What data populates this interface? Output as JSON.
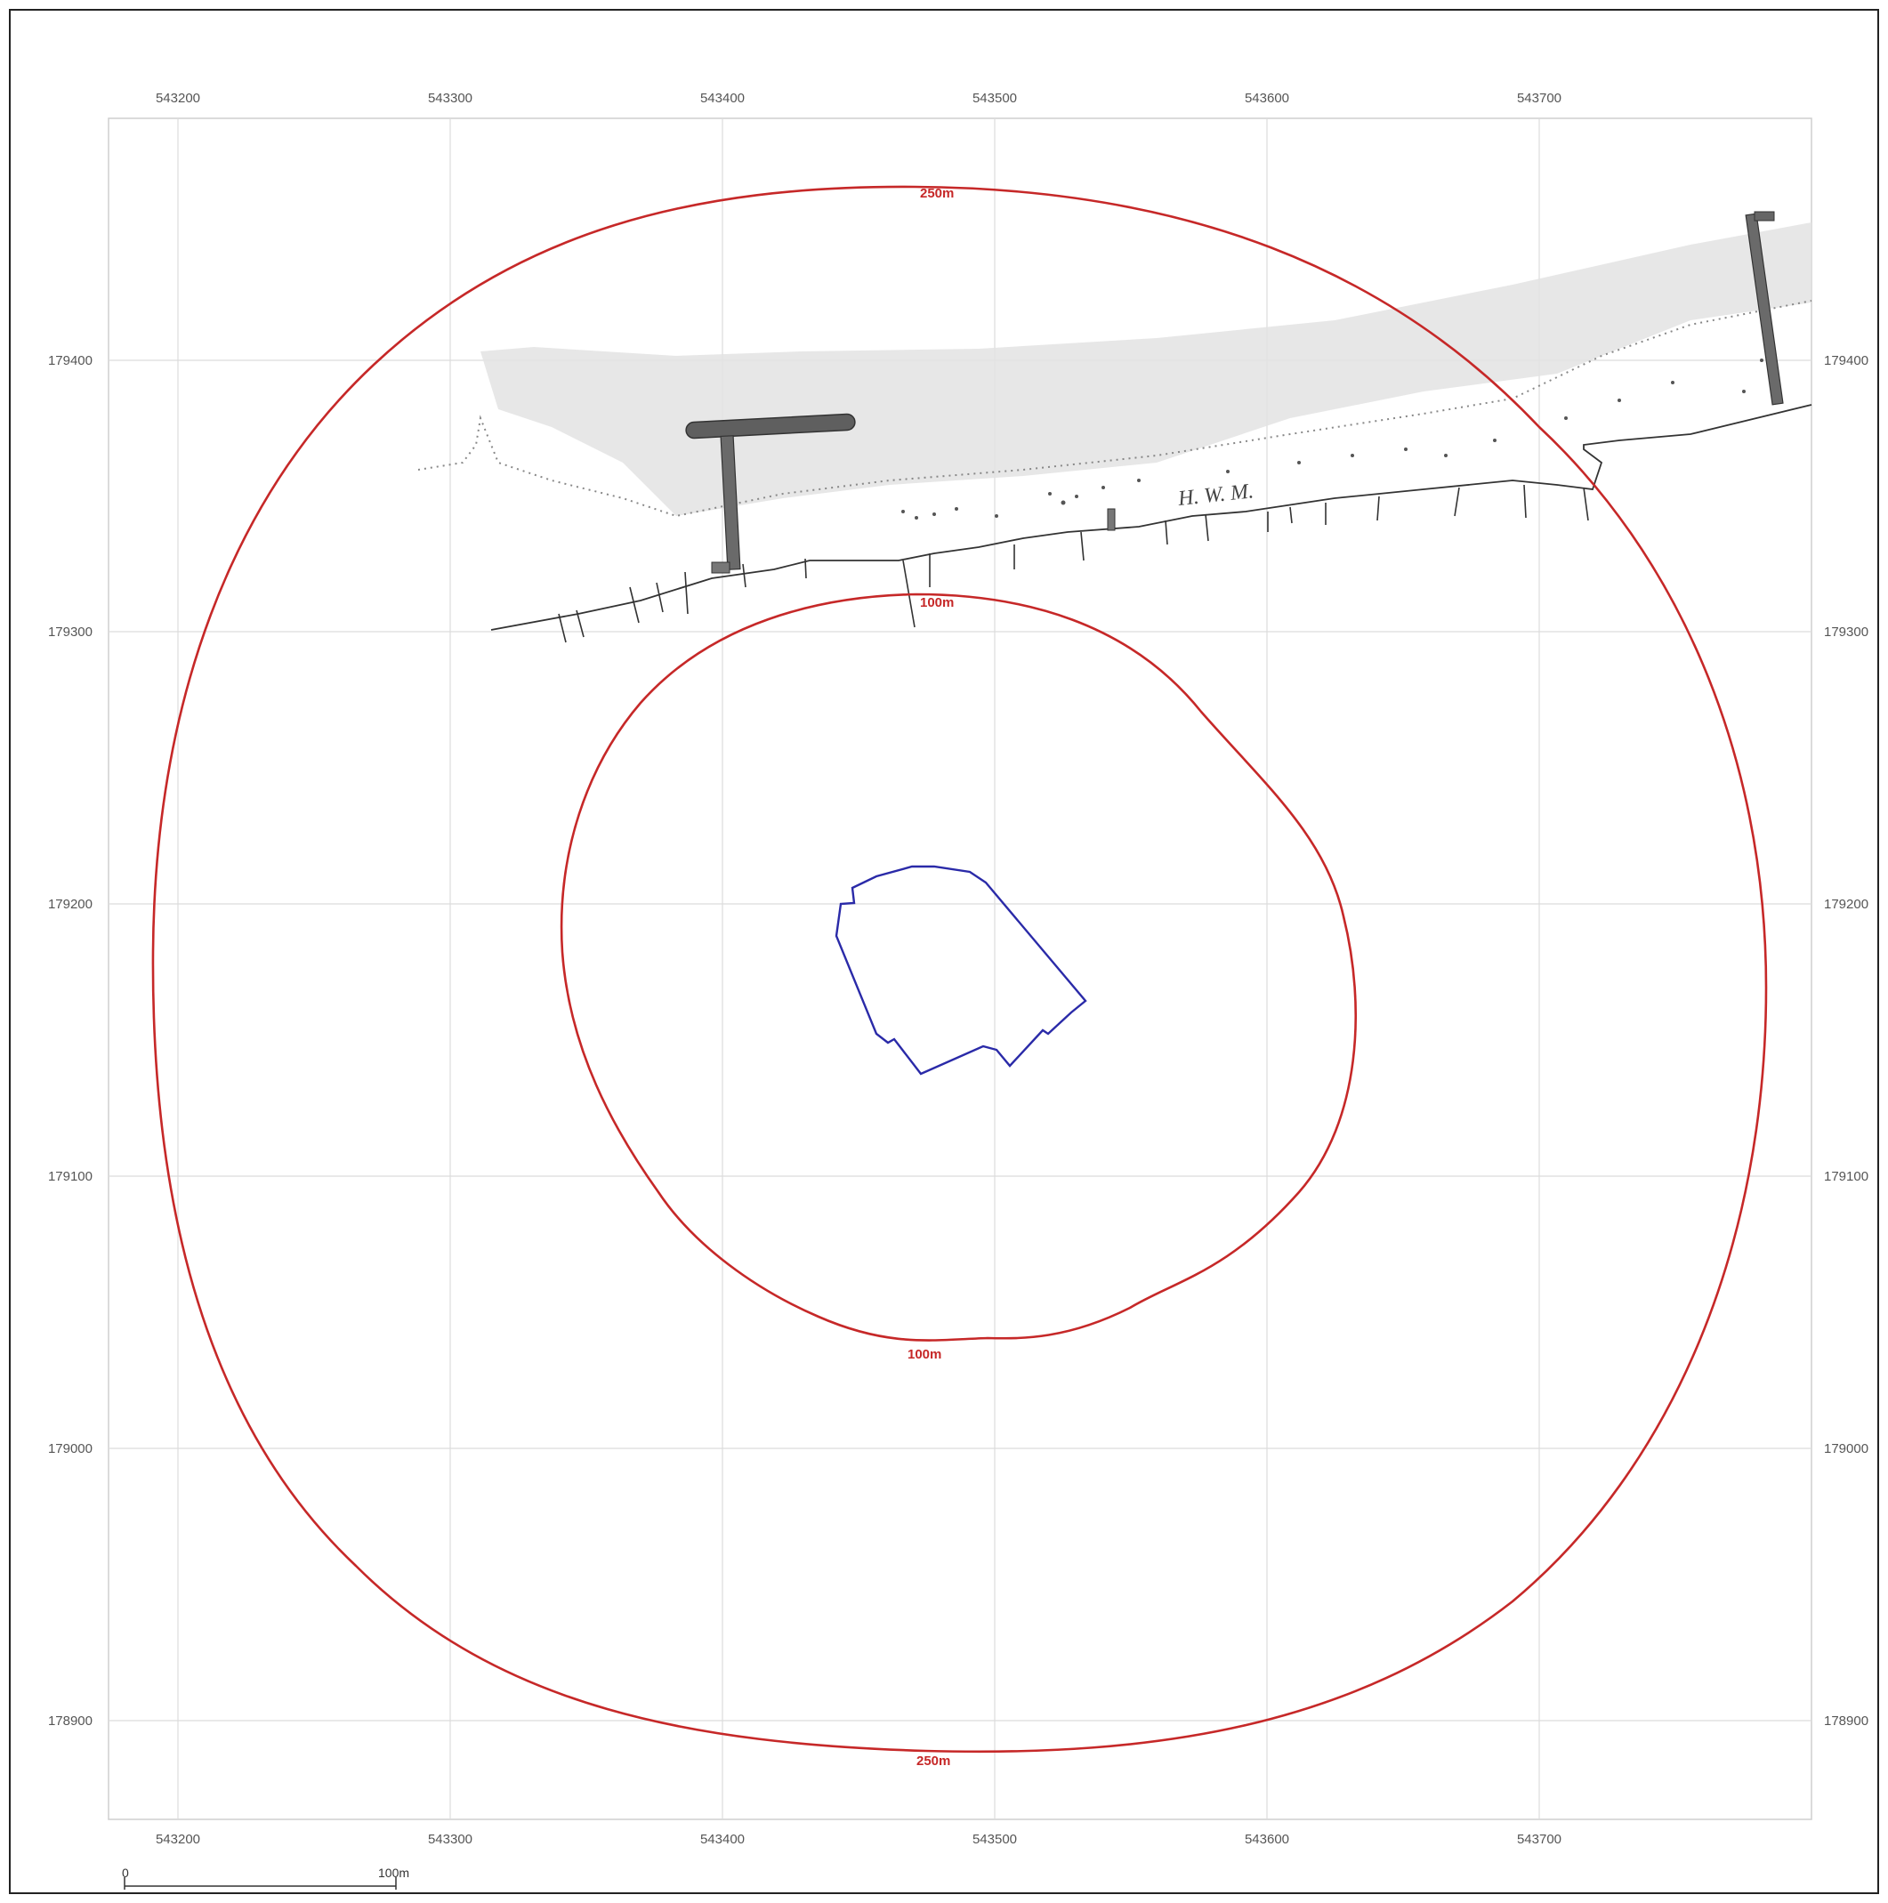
{
  "grid": {
    "eastings": [
      "543200",
      "543300",
      "543400",
      "543500",
      "543600",
      "543700"
    ],
    "northings": [
      "179400",
      "179300",
      "179200",
      "179100",
      "179000",
      "178900"
    ]
  },
  "buffers": {
    "outer_label_top": "250m",
    "outer_label_bottom": "250m",
    "inner_label_top": "100m",
    "inner_label_bottom": "100m",
    "color": "#c62828"
  },
  "site": {
    "outline_color": "#2a2aa8"
  },
  "coast": {
    "label": "H. W. M."
  },
  "scale_bar": {
    "start_label": "0",
    "end_label": "100m"
  }
}
